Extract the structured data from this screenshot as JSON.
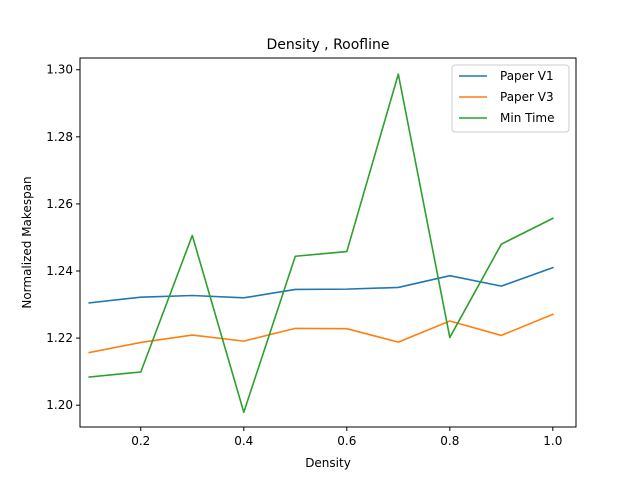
{
  "chart_data": {
    "type": "line",
    "title": "Density , Roofline",
    "xlabel": "Density",
    "ylabel": "Normalized Makespan",
    "x": [
      0.1,
      0.2,
      0.3,
      0.4,
      0.5,
      0.6,
      0.7,
      0.8,
      0.9,
      1.0
    ],
    "xlim": [
      0.082,
      1.045
    ],
    "ylim": [
      1.1935,
      1.3035
    ],
    "xticks": [
      0.2,
      0.4,
      0.6,
      0.8,
      1.0
    ],
    "xtick_labels": [
      "0.2",
      "0.4",
      "0.6",
      "0.8",
      "1.0"
    ],
    "yticks": [
      1.2,
      1.22,
      1.24,
      1.26,
      1.28,
      1.3
    ],
    "ytick_labels": [
      "1.20",
      "1.22",
      "1.24",
      "1.26",
      "1.28",
      "1.30"
    ],
    "grid": false,
    "legend_position": "top-right",
    "series": [
      {
        "name": "Paper V1",
        "color": "#1f77b4",
        "values": [
          1.2305,
          1.2322,
          1.2327,
          1.232,
          1.2345,
          1.2346,
          1.2351,
          1.2386,
          1.2355,
          1.241
        ]
      },
      {
        "name": "Paper V3",
        "color": "#ff7f0e",
        "values": [
          1.2157,
          1.2187,
          1.2209,
          1.2191,
          1.2229,
          1.2228,
          1.2188,
          1.2251,
          1.2208,
          1.2271
        ]
      },
      {
        "name": "Min Time",
        "color": "#2ca02c",
        "values": [
          1.2084,
          1.2099,
          1.2506,
          1.1979,
          1.2444,
          1.2458,
          1.2987,
          1.2202,
          1.248,
          1.2557
        ]
      }
    ]
  }
}
